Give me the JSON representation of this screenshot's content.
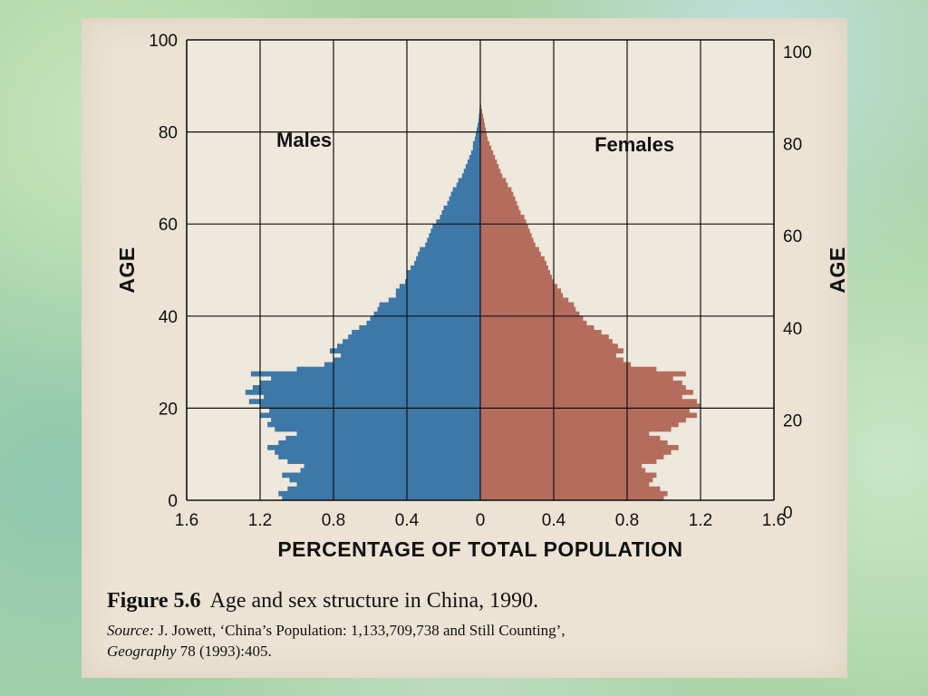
{
  "chart_data": {
    "type": "bar",
    "orientation": "horizontal",
    "xlabel": "PERCENTAGE OF TOTAL POPULATION",
    "ylabel": "AGE",
    "x_ticks": [
      "1.6",
      "1.2",
      "0.8",
      "0.4",
      "0",
      "0.4",
      "0.8",
      "1.2",
      "1.6"
    ],
    "y_ticks": [
      "0",
      "20",
      "40",
      "60",
      "80",
      "100"
    ],
    "xlim": [
      -1.6,
      1.6
    ],
    "ylim": [
      0,
      100
    ],
    "grid": true,
    "ages": [
      0,
      1,
      2,
      3,
      4,
      5,
      6,
      7,
      8,
      9,
      10,
      11,
      12,
      13,
      14,
      15,
      16,
      17,
      18,
      19,
      20,
      21,
      22,
      23,
      24,
      25,
      26,
      27,
      28,
      29,
      30,
      31,
      32,
      33,
      34,
      35,
      36,
      37,
      38,
      39,
      40,
      41,
      42,
      43,
      44,
      45,
      46,
      47,
      48,
      49,
      50,
      51,
      52,
      53,
      54,
      55,
      56,
      57,
      58,
      59,
      60,
      61,
      62,
      63,
      64,
      65,
      66,
      67,
      68,
      69,
      70,
      71,
      72,
      73,
      74,
      75,
      76,
      77,
      78,
      79,
      80,
      81,
      82,
      83,
      84,
      85
    ],
    "series": [
      {
        "name": "Males",
        "color": "#3d78a8",
        "values": [
          1.08,
          1.1,
          1.05,
          1.0,
          1.04,
          1.08,
          0.98,
          0.96,
          1.05,
          1.1,
          1.12,
          1.16,
          1.1,
          1.06,
          1.0,
          1.12,
          1.16,
          1.14,
          1.2,
          1.15,
          1.2,
          1.26,
          1.18,
          1.28,
          1.24,
          1.2,
          1.14,
          1.25,
          1.0,
          0.85,
          0.8,
          0.76,
          0.82,
          0.78,
          0.75,
          0.72,
          0.7,
          0.66,
          0.62,
          0.6,
          0.58,
          0.56,
          0.55,
          0.5,
          0.46,
          0.46,
          0.44,
          0.41,
          0.4,
          0.4,
          0.38,
          0.36,
          0.35,
          0.34,
          0.33,
          0.3,
          0.29,
          0.28,
          0.27,
          0.26,
          0.24,
          0.22,
          0.21,
          0.2,
          0.18,
          0.17,
          0.16,
          0.15,
          0.13,
          0.12,
          0.1,
          0.09,
          0.08,
          0.07,
          0.06,
          0.05,
          0.04,
          0.04,
          0.03,
          0.025,
          0.02,
          0.015,
          0.01,
          0.008,
          0.005,
          0.003
        ]
      },
      {
        "name": "Females",
        "color": "#b46c5d",
        "values": [
          1.0,
          1.02,
          0.98,
          0.92,
          0.94,
          0.96,
          0.9,
          0.88,
          0.96,
          1.0,
          1.04,
          1.08,
          1.02,
          0.98,
          0.92,
          1.04,
          1.08,
          1.12,
          1.18,
          1.14,
          1.2,
          1.18,
          1.1,
          1.16,
          1.12,
          1.1,
          1.05,
          1.12,
          0.96,
          0.82,
          0.78,
          0.74,
          0.78,
          0.75,
          0.72,
          0.7,
          0.66,
          0.62,
          0.58,
          0.56,
          0.54,
          0.52,
          0.51,
          0.48,
          0.45,
          0.44,
          0.42,
          0.4,
          0.39,
          0.38,
          0.37,
          0.36,
          0.35,
          0.33,
          0.32,
          0.3,
          0.29,
          0.28,
          0.27,
          0.26,
          0.25,
          0.24,
          0.22,
          0.21,
          0.2,
          0.19,
          0.18,
          0.17,
          0.15,
          0.14,
          0.12,
          0.11,
          0.1,
          0.09,
          0.08,
          0.07,
          0.06,
          0.05,
          0.04,
          0.035,
          0.03,
          0.025,
          0.02,
          0.015,
          0.01,
          0.005
        ]
      }
    ]
  },
  "caption": {
    "figure_label": "Figure 5.6",
    "title": "Age and sex structure in China, 1990.",
    "source_label": "Source:",
    "source_text": "J. Jowett, ‘China’s Population: 1,133,709,738 and Still Counting’,",
    "journal": "Geography",
    "citation": "78 (1993):405."
  }
}
